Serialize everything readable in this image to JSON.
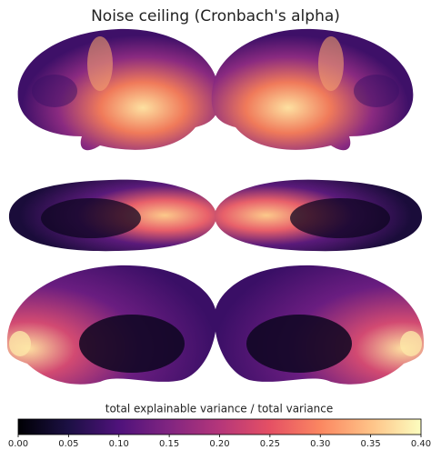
{
  "chart_data": {
    "type": "colorbar",
    "title": "Noise ceiling (Cronbach's alpha)",
    "xlabel": "total explainable variance / total variance",
    "xlim": [
      0,
      0.4
    ],
    "xticks": [
      {
        "value": 0,
        "label": "0.00"
      },
      {
        "value": 0.05,
        "label": "0.05"
      },
      {
        "value": 0.1,
        "label": "0.10"
      },
      {
        "value": 0.15,
        "label": "0.15"
      },
      {
        "value": 0.2,
        "label": "0.20"
      },
      {
        "value": 0.25,
        "label": "0.25"
      },
      {
        "value": 0.3,
        "label": "0.30"
      },
      {
        "value": 0.35,
        "label": "0.35"
      },
      {
        "value": 0.4,
        "label": "0.40"
      }
    ],
    "colors": [
      "#000004",
      "#1c1044",
      "#4f127b",
      "#812581",
      "#b5367a",
      "#e55064",
      "#fb8761",
      "#fec287",
      "#fcfdbf"
    ]
  }
}
